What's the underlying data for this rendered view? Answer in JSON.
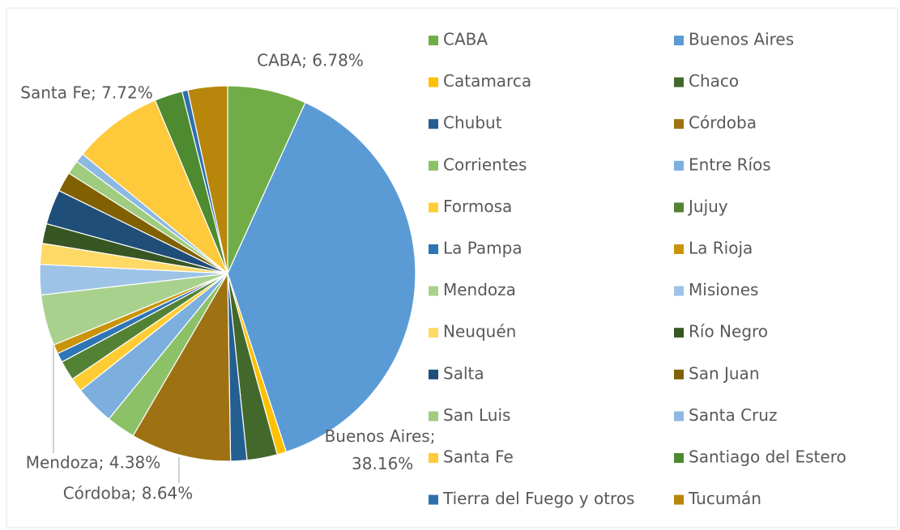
{
  "chart_data": {
    "type": "pie",
    "categories": [
      "CABA",
      "Buenos Aires",
      "Catamarca",
      "Chaco",
      "Chubut",
      "Córdoba",
      "Corrientes",
      "Entre Ríos",
      "Formosa",
      "Jujuy",
      "La Pampa",
      "La Rioja",
      "Mendoza",
      "Misiones",
      "Neuquén",
      "Río Negro",
      "Salta",
      "San Juan",
      "San Luis",
      "Santa Cruz",
      "Santa Fe",
      "Santiago del Estero",
      "Tierra del Fuego y otros",
      "Tucumán"
    ],
    "values": [
      6.78,
      38.16,
      0.8,
      2.6,
      1.4,
      8.64,
      2.5,
      3.4,
      1.2,
      1.7,
      0.8,
      0.8,
      4.38,
      2.6,
      1.8,
      1.7,
      3.0,
      1.7,
      1.2,
      0.8,
      7.72,
      2.4,
      0.5,
      3.4
    ],
    "value_labels": [
      "CABA; 6.78%",
      "Buenos Aires; 38.16%",
      null,
      null,
      null,
      "Córdoba; 8.64%",
      null,
      null,
      null,
      null,
      null,
      null,
      "Mendoza; 4.38%",
      null,
      null,
      null,
      null,
      null,
      null,
      null,
      "Santa Fe; 7.72%",
      null,
      null,
      null
    ],
    "colors": [
      "#70ad47",
      "#5b9bd5",
      "#ffc000",
      "#43682b",
      "#255e91",
      "#9e7212",
      "#8cc168",
      "#7cafdd",
      "#ffcd33",
      "#548235",
      "#2e75b6",
      "#c9930a",
      "#a9d18e",
      "#9dc3e6",
      "#ffd966",
      "#375623",
      "#1f4e79",
      "#806000",
      "#9fcc7f",
      "#8db8e2",
      "#ffc93c",
      "#4d8a30",
      "#2f6fb0",
      "#b8860b"
    ],
    "legend": "right"
  }
}
